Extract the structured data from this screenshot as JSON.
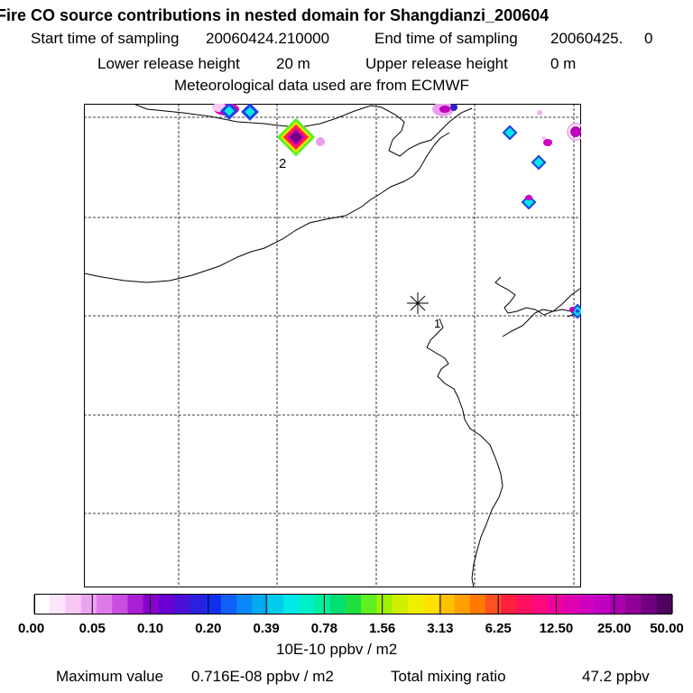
{
  "header": {
    "title": "Fire CO source contributions in nested domain for Shangdianzi_200604",
    "start_label": "Start time of sampling",
    "start_value": "20060424.210000",
    "end_label": "End time of sampling",
    "end_value": "20060425.     0",
    "lower_label": "Lower release height",
    "lower_value": "20 m",
    "upper_label": "Upper release height",
    "upper_value": "0 m",
    "met_line": "Meteorological data used are from ECMWF"
  },
  "map": {
    "receptor_marker": "asterisk-receptor-icon",
    "contour_labels": [
      "2",
      "1"
    ]
  },
  "colorbar": {
    "tick_labels": [
      "0.00",
      "0.05",
      "0.10",
      "0.20",
      "0.39",
      "0.78",
      "1.56",
      "3.13",
      "6.25",
      "12.50",
      "25.00",
      "50.00"
    ],
    "colors": [
      "#ffffff",
      "#fce4fc",
      "#f7c8f6",
      "#eda4f0",
      "#df7ae8",
      "#c94fe0",
      "#a91fd6",
      "#8800cc",
      "#6a00d0",
      "#4b10d8",
      "#2a20e0",
      "#1030f0",
      "#1060f8",
      "#0a88f8",
      "#00aaf0",
      "#00ccec",
      "#00e8e8",
      "#00f0c8",
      "#00f0a0",
      "#00e070",
      "#20e040",
      "#60f020",
      "#a0f000",
      "#d0f000",
      "#eef000",
      "#ffe000",
      "#ffc000",
      "#ffa000",
      "#ff7800",
      "#ff5020",
      "#ff2040",
      "#ff1060",
      "#ff0880",
      "#f000a0",
      "#e000b0",
      "#d000c0",
      "#c000c0",
      "#a800b0",
      "#900098",
      "#700080",
      "#500060"
    ],
    "unit": "10E-10 ppbv / m2"
  },
  "footer": {
    "max_label": "Maximum value",
    "max_value": "0.716E-08 ppbv / m2",
    "total_label": "Total mixing ratio",
    "total_value": "47.2 ppbv"
  }
}
